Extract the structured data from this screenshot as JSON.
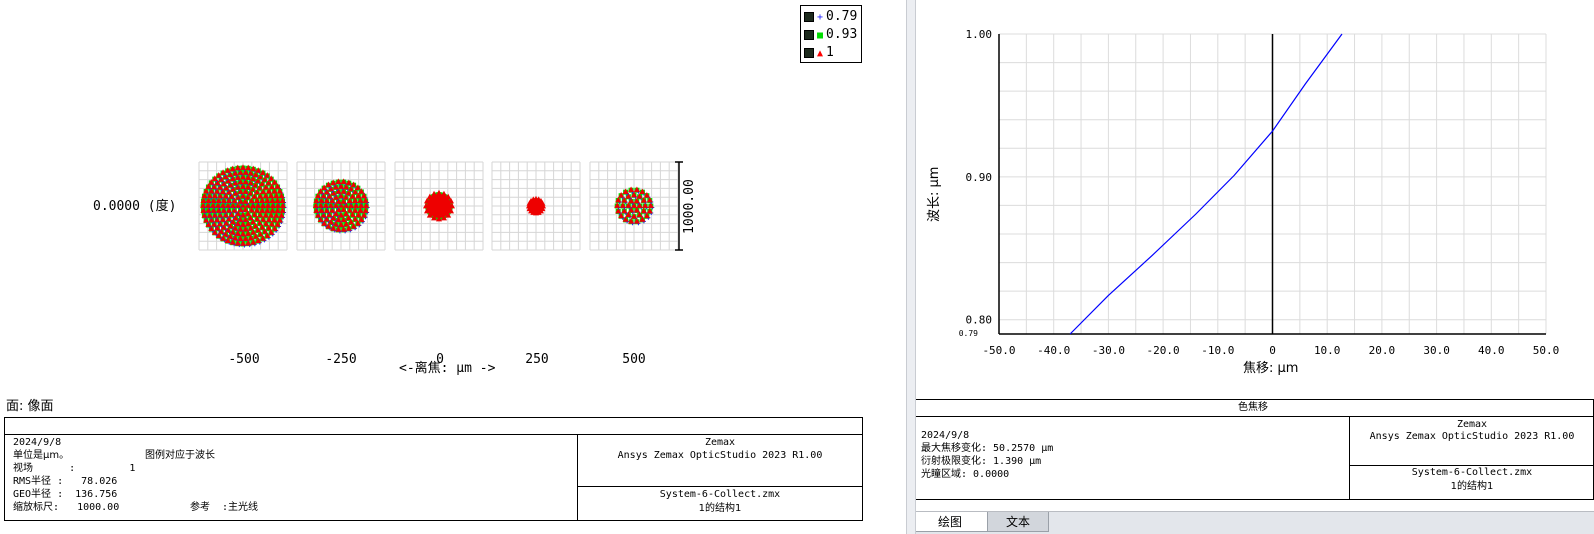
{
  "spot": {
    "field_label": "0.0000 (度)",
    "defocus_labels": [
      "-500",
      "-250",
      "0",
      "250",
      "500"
    ],
    "axis_title": "<-离焦: μm ->",
    "scale_label": "1000.00",
    "surface_label": "面: 像面",
    "legend": [
      {
        "symbol": "+",
        "label": "0.79",
        "color": "#2020ff"
      },
      {
        "symbol": "■",
        "label": "0.93",
        "color": "#00dd00"
      },
      {
        "symbol": "▲",
        "label": "1",
        "color": "#ff0000"
      }
    ],
    "info": {
      "date": "2024/9/8",
      "line1": "单位是μm。",
      "line1b": "图例对应于波长",
      "line2": "视场      :         1",
      "line3": "RMS半径 :   78.026",
      "line4": "GEO半径 :  136.756",
      "line5": "缩放标尺:   1000.00",
      "line5b": "参考  :主光线",
      "brand": "Zemax",
      "product": "Ansys Zemax OpticStudio 2023 R1.00",
      "file": "System-6-Collect.zmx",
      "config": "1的结构1"
    }
  },
  "chart_data": {
    "type": "line",
    "title": "色焦移",
    "xlabel": "焦移: μm",
    "ylabel": "波长: μm",
    "xlim": [
      -50,
      50
    ],
    "ylim": [
      0.79,
      1.0
    ],
    "x_ticks": [
      "-50.0",
      "-40.0",
      "-30.0",
      "-20.0",
      "-10.0",
      "0",
      "10.0",
      "20.0",
      "30.0",
      "40.0",
      "50.0"
    ],
    "y_ticks": [
      "1.00",
      "0.90",
      "0.80",
      "0.79"
    ],
    "grid": true,
    "series": [
      {
        "color": "#0000ff",
        "x": [
          -37.0,
          -30.0,
          -22.0,
          -14.0,
          -7.0,
          0.0,
          6.0,
          12.7
        ],
        "y": [
          0.79,
          0.817,
          0.845,
          0.874,
          0.901,
          0.932,
          0.965,
          1.0
        ]
      }
    ]
  },
  "shift": {
    "title": "色焦移",
    "info": {
      "date": "2024/9/8",
      "line1": "最大焦移变化: 50.2570 μm",
      "line2": "衍射极限变化: 1.390 μm",
      "line3": "光瞳区域: 0.0000",
      "brand": "Zemax",
      "product": "Ansys Zemax OpticStudio 2023 R1.00",
      "file": "System-6-Collect.zmx",
      "config": "1的结构1"
    },
    "tabs": [
      "绘图",
      "文本"
    ]
  }
}
